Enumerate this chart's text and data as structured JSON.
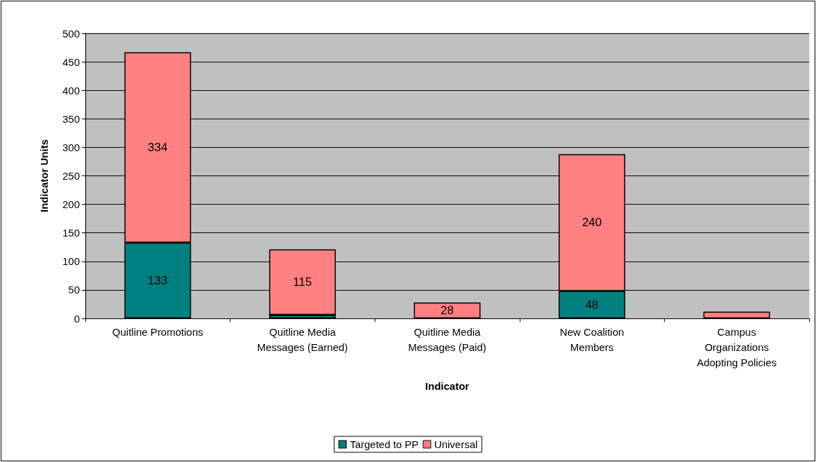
{
  "chart_data": {
    "type": "bar",
    "stacked": true,
    "xlabel": "Indicator",
    "ylabel": "Indicator Units",
    "categories": [
      "Quitline Promotions",
      "Quitline Media\nMessages (Earned)",
      "Quitline Media\nMessages (Paid)",
      "New Coalition\nMembers",
      "Campus\nOrganizations\nAdopting Policies"
    ],
    "series": [
      {
        "name": "Targeted to PP",
        "color": "#008080",
        "values": [
          133,
          6,
          0,
          48,
          0
        ],
        "value_labels": [
          "133",
          null,
          null,
          "48",
          null
        ]
      },
      {
        "name": "Universal",
        "color": "#ff8080",
        "values": [
          334,
          115,
          28,
          240,
          12
        ],
        "value_labels": [
          "334",
          "115",
          "28",
          "240",
          null
        ]
      }
    ],
    "ylim": [
      0,
      500
    ],
    "yticks": [
      0,
      50,
      100,
      150,
      200,
      250,
      300,
      350,
      400,
      450,
      500
    ],
    "grid": "y",
    "legend": "bottom"
  }
}
